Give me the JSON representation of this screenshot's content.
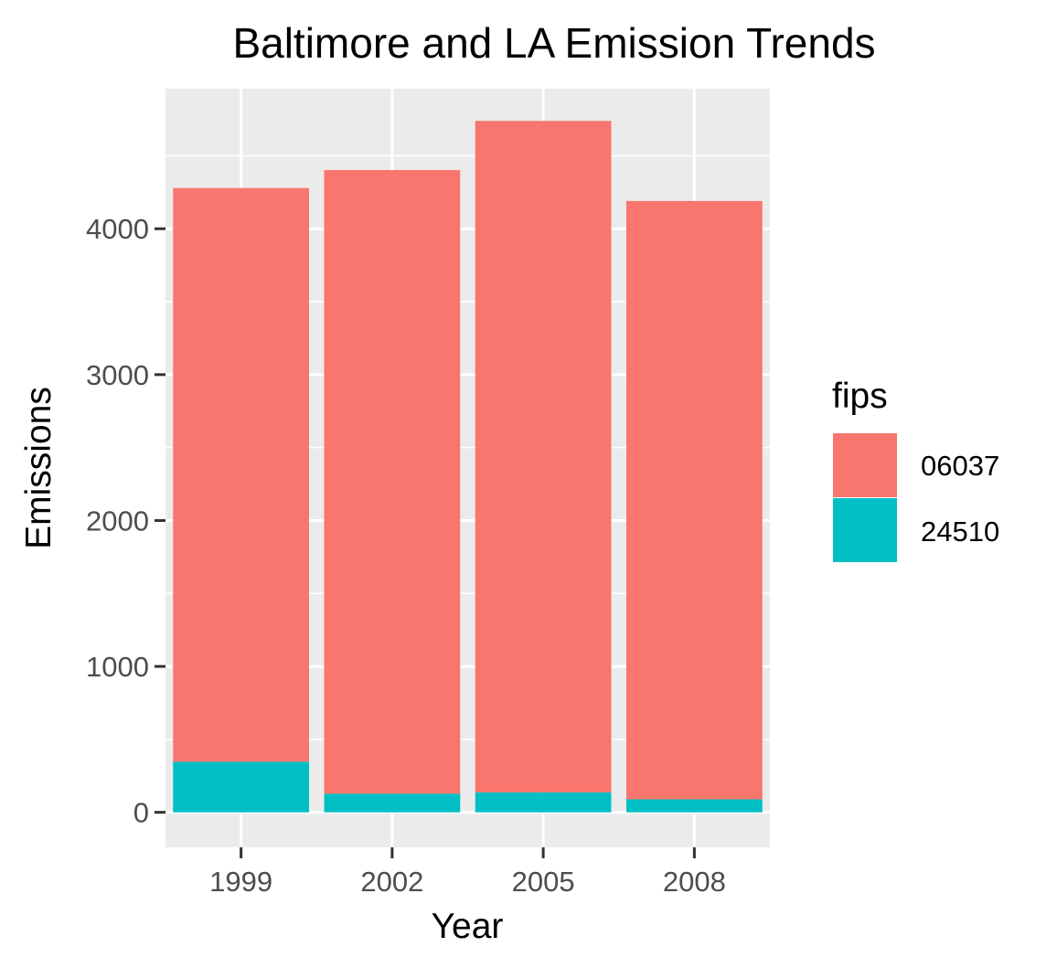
{
  "chart_data": {
    "type": "bar",
    "stacked": true,
    "title": "Baltimore and LA Emission Trends",
    "xlabel": "Year",
    "ylabel": "Emissions",
    "categories": [
      "1999",
      "2002",
      "2005",
      "2008"
    ],
    "series": [
      {
        "name": "24510",
        "color": "#00BFC4",
        "values": [
          347,
          128,
          137,
          89
        ]
      },
      {
        "name": "06037",
        "color": "#F8766D",
        "values": [
          3932,
          4274,
          4602,
          4101
        ]
      }
    ],
    "ylim": [
      -240,
      4960
    ],
    "yticks": [
      0,
      1000,
      2000,
      3000,
      4000
    ],
    "grid": true,
    "legend": {
      "title": "fips",
      "placement": "right",
      "entries": [
        "06037",
        "24510"
      ]
    }
  }
}
